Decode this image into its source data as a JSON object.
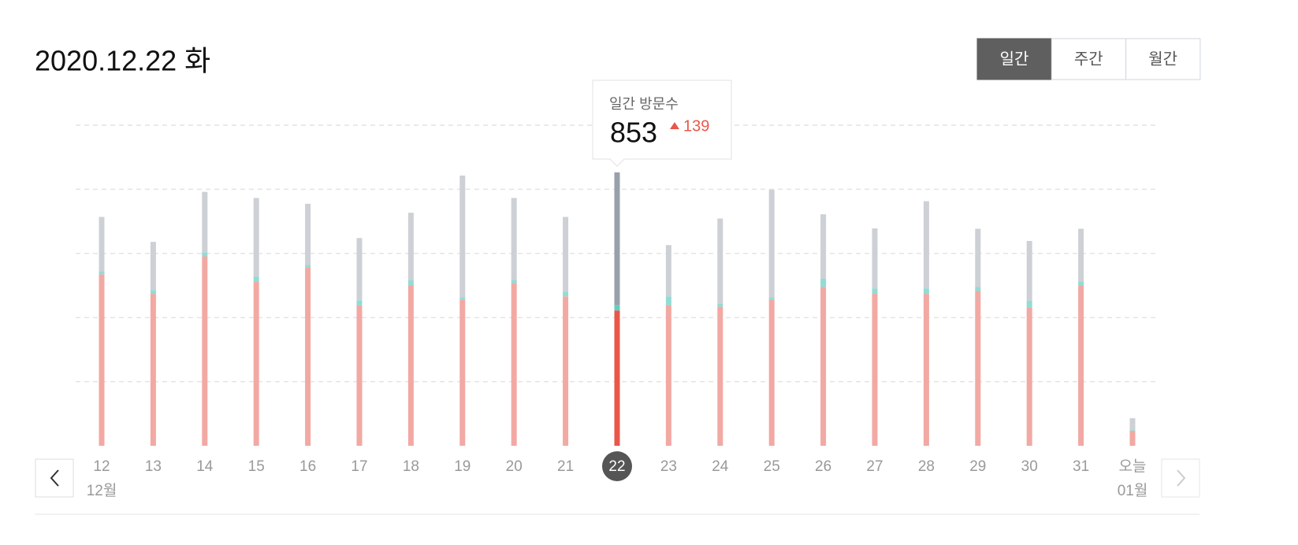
{
  "header": {
    "date": "2020.12.22 화"
  },
  "buttons": [
    "일간",
    "주간",
    "월간"
  ],
  "active_button": 0,
  "tooltip": {
    "label": "일간 방문수",
    "value": 853,
    "change": 139
  },
  "months": [
    "12월",
    "01월"
  ],
  "chart_data": {
    "type": "stacked-bar",
    "categories": [
      "12",
      "13",
      "14",
      "15",
      "16",
      "17",
      "18",
      "19",
      "20",
      "21",
      "22",
      "23",
      "24",
      "25",
      "26",
      "27",
      "28",
      "29",
      "30",
      "31",
      "오늘"
    ],
    "series": [
      {
        "color": "#f2a9a3",
        "highlight_color": "#e8574a",
        "values": [
          535,
          474,
          591,
          513,
          557,
          439,
          501,
          456,
          508,
          466,
          422,
          439,
          434,
          456,
          496,
          474,
          474,
          483,
          432,
          501,
          47
        ]
      },
      {
        "color": "#91dcd4",
        "highlight_color": "#5fcfc2",
        "values": [
          10,
          12,
          12,
          15,
          7,
          15,
          15,
          7,
          10,
          15,
          17,
          27,
          10,
          7,
          25,
          17,
          17,
          12,
          20,
          12,
          2
        ]
      },
      {
        "color": "#cdd0d5",
        "highlight_color": "#9aa0aa",
        "values": [
          169,
          150,
          189,
          245,
          191,
          194,
          211,
          380,
          255,
          233,
          414,
          160,
          265,
          336,
          201,
          187,
          272,
          182,
          187,
          164,
          37
        ]
      }
    ],
    "selected_index": 10,
    "ylim": [
      0,
      1000
    ],
    "yticks": [
      200,
      400,
      600,
      800,
      1000
    ],
    "grid": true
  }
}
